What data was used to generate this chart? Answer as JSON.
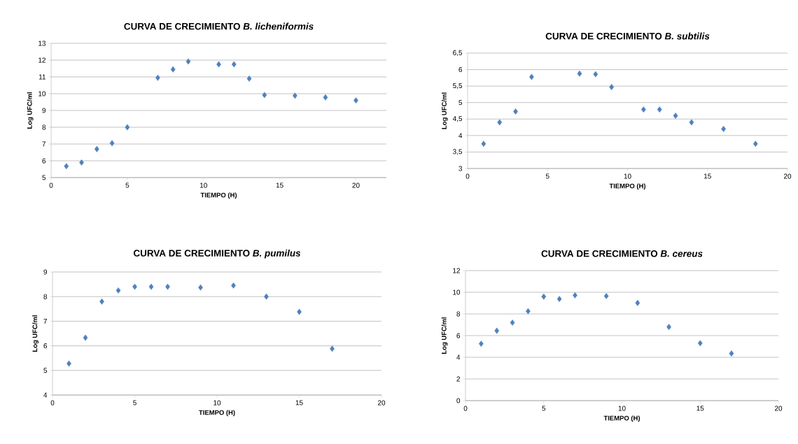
{
  "chart_data": [
    {
      "type": "scatter",
      "title": "CURVA DE CRECIMIENTO *B. licheniformis*",
      "xlabel": "TIEMPO  (H)",
      "ylabel": "Log UFC/ml",
      "color": "#4f81bd",
      "marker": "diamond",
      "grid": "y",
      "xlim": [
        0,
        22
      ],
      "xticks": [
        0,
        5,
        10,
        15,
        20
      ],
      "ylim": [
        5,
        13
      ],
      "yticks": [
        5,
        6,
        7,
        8,
        9,
        10,
        11,
        12,
        13
      ],
      "x": [
        1,
        2,
        3,
        4,
        5,
        7,
        8,
        9,
        11,
        12,
        13,
        14,
        16,
        18,
        20
      ],
      "values": [
        5.68,
        5.9,
        6.7,
        7.05,
        8.0,
        10.95,
        11.45,
        11.92,
        11.75,
        11.75,
        10.9,
        9.92,
        9.88,
        9.78,
        9.6
      ]
    },
    {
      "type": "scatter",
      "title": "CURVA DE CRECIMIENTO *B. subtilis*",
      "xlabel": "TIEMPO  (H)",
      "ylabel": "Log UFC/ml",
      "color": "#4f81bd",
      "marker": "diamond",
      "grid": "y",
      "xlim": [
        0,
        20
      ],
      "xticks": [
        0,
        5,
        10,
        15,
        20
      ],
      "ylim": [
        3,
        6.5
      ],
      "yticks": [
        3,
        {
          "value": 3.5,
          "label": "3,5"
        },
        4,
        {
          "value": 4.5,
          "label": "4,5"
        },
        5,
        {
          "value": 5.5,
          "label": "5,5"
        },
        6,
        {
          "value": 6.5,
          "label": "6,5"
        }
      ],
      "x": [
        1,
        2,
        3,
        4,
        7,
        8,
        9,
        11,
        12,
        13,
        14,
        16,
        18
      ],
      "values": [
        3.75,
        4.4,
        4.73,
        5.78,
        5.88,
        5.86,
        5.47,
        4.79,
        4.79,
        4.6,
        4.4,
        4.2,
        3.75
      ]
    },
    {
      "type": "scatter",
      "title": "CURVA DE CRECIMIENTO *B. pumilus*",
      "xlabel": "TIEMPO  (H)",
      "ylabel": "Log UFC/ml",
      "color": "#4f81bd",
      "marker": "diamond",
      "grid": "y",
      "xlim": [
        0,
        20
      ],
      "xticks": [
        0,
        5,
        10,
        15,
        20
      ],
      "ylim": [
        4,
        9
      ],
      "yticks": [
        4,
        5,
        6,
        7,
        8,
        9
      ],
      "x": [
        1,
        2,
        3,
        4,
        5,
        6,
        7,
        9,
        11,
        13,
        15,
        17
      ],
      "values": [
        5.28,
        6.33,
        7.8,
        8.25,
        8.4,
        8.4,
        8.4,
        8.37,
        8.45,
        8.0,
        7.38,
        5.88
      ]
    },
    {
      "type": "scatter",
      "title": "CURVA DE CRECIMIENTO *B. cereus*",
      "xlabel": "TIEMPO (H)",
      "ylabel": "Log UFC/ml",
      "color": "#4f81bd",
      "marker": "diamond",
      "grid": "y",
      "xlim": [
        0,
        20
      ],
      "xticks": [
        0,
        5,
        10,
        15,
        20
      ],
      "ylim": [
        0,
        12
      ],
      "yticks": [
        0,
        2,
        4,
        6,
        8,
        10,
        12
      ],
      "x": [
        1,
        2,
        3,
        4,
        5,
        6,
        7,
        9,
        11,
        13,
        15,
        17
      ],
      "values": [
        5.25,
        6.45,
        7.2,
        8.25,
        9.6,
        9.38,
        9.72,
        9.65,
        9.02,
        6.8,
        5.3,
        4.35
      ]
    }
  ]
}
